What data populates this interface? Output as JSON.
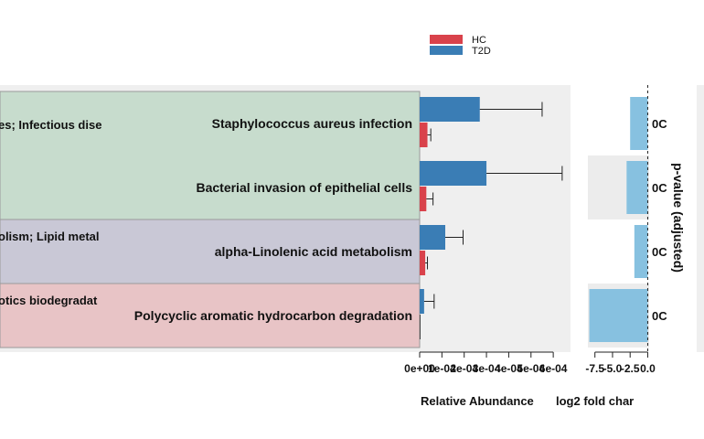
{
  "chart_data": {
    "type": "bar",
    "legend": {
      "position": "top",
      "entries": [
        {
          "label": "HC",
          "color": "#d9424b"
        },
        {
          "label": "T2D",
          "color": "#3a7db5"
        }
      ]
    },
    "category_groups": [
      {
        "label": "es; Infectious dise",
        "color": "#c7dccd",
        "pathways": [
          0,
          1
        ]
      },
      {
        "label": "olism; Lipid metal",
        "color": "#c9c8d6",
        "pathways": [
          2
        ]
      },
      {
        "label": "otics biodegradat",
        "color": "#e8c4c6",
        "pathways": [
          3
        ]
      }
    ],
    "pathways": [
      "Staphylococcus aureus infection",
      "Bacterial invasion of epithelial cells",
      "alpha-Linolenic acid metabolism",
      "Polycyclic aromatic hydrocarbon degradation"
    ],
    "abundance": {
      "xlabel": "Relative Abundance",
      "xlim": [
        0,
        0.00062
      ],
      "ticks": [
        0,
        0.0001,
        0.0002,
        0.0003,
        0.0004,
        0.0005,
        0.0006
      ],
      "tick_labels": [
        "0e+00",
        "1e-04",
        "2e-04",
        "3e-04",
        "4e-04",
        "5e-04",
        "6e-04"
      ],
      "series": [
        {
          "name": "T2D",
          "color": "#3a7db5",
          "values": [
            0.00027,
            0.0003,
            0.000115,
            2e-05
          ],
          "errors": [
            0.00028,
            0.00034,
            8e-05,
            4.5e-05
          ]
        },
        {
          "name": "HC",
          "color": "#d9424b",
          "values": [
            3.5e-05,
            3e-05,
            2.5e-05,
            3e-06
          ],
          "errors": [
            1.5e-05,
            3e-05,
            1e-05,
            0.0
          ]
        }
      ]
    },
    "fold_change": {
      "xlabel": "log2 fold char",
      "xlim": [
        -8.5,
        0.2
      ],
      "ticks": [
        -7.5,
        -5.0,
        -2.5,
        0.0
      ],
      "tick_labels": [
        "-7.5",
        "-5.0",
        "-2.5",
        "0.0"
      ],
      "color": "#87c1e0",
      "values": [
        -2.5,
        -3.0,
        -1.9,
        -8.3
      ]
    },
    "pvalue": {
      "label": "p-value (adjusted)",
      "values": [
        "0C",
        "0C",
        "0C",
        "0C"
      ]
    }
  }
}
